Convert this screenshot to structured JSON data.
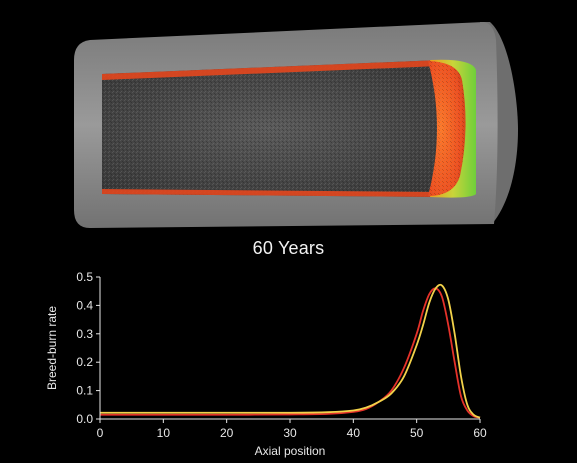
{
  "caption": "60 Years",
  "colors": {
    "background": "#000000",
    "cladding": "#8c8c8c",
    "fuel_core": "#4a4a4a",
    "burn_front": "#ff5a1e",
    "burn_front_edge": "#9bd12a",
    "curve_red": "#e5322a",
    "curve_yellow": "#f2d24a"
  },
  "chart_data": {
    "type": "line",
    "xlabel": "Axial position",
    "ylabel": "Breed-burn rate",
    "xlim": [
      0,
      60
    ],
    "ylim": [
      0,
      0.5
    ],
    "xticks": [
      0,
      10,
      20,
      30,
      40,
      50,
      60
    ],
    "yticks": [
      0.0,
      0.1,
      0.2,
      0.3,
      0.4,
      0.5
    ],
    "ytick_labels": [
      "0.0",
      "0.1",
      "0.2",
      "0.3",
      "0.4",
      "0.5"
    ],
    "grid": false,
    "series": [
      {
        "color": "#e5322a",
        "x": [
          0,
          10,
          20,
          30,
          36,
          40,
          42,
          44,
          46,
          48,
          50,
          51,
          52,
          53,
          54,
          55,
          56,
          57,
          58,
          59,
          60
        ],
        "y": [
          0.015,
          0.015,
          0.015,
          0.016,
          0.018,
          0.025,
          0.035,
          0.06,
          0.1,
          0.18,
          0.3,
          0.38,
          0.44,
          0.46,
          0.43,
          0.33,
          0.2,
          0.08,
          0.03,
          0.01,
          0.005
        ]
      },
      {
        "color": "#f2d24a",
        "x": [
          0,
          10,
          20,
          30,
          36,
          40,
          42,
          44,
          46,
          48,
          50,
          51,
          52,
          53,
          54,
          55,
          56,
          57,
          58,
          59,
          60
        ],
        "y": [
          0.022,
          0.022,
          0.022,
          0.022,
          0.024,
          0.03,
          0.04,
          0.06,
          0.09,
          0.15,
          0.26,
          0.33,
          0.41,
          0.46,
          0.47,
          0.42,
          0.3,
          0.15,
          0.05,
          0.015,
          0.005
        ]
      }
    ]
  }
}
